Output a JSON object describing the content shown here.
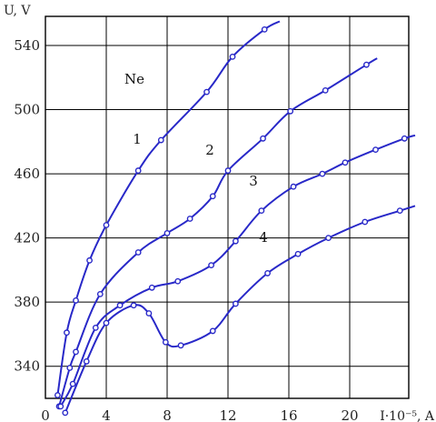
{
  "chart_data": {
    "type": "line",
    "annotation": "Ne",
    "xlabel": "I·10⁻⁵, A",
    "ylabel": "U, V",
    "xlim": [
      0,
      24
    ],
    "ylim": [
      320,
      560
    ],
    "xticks": [
      0,
      4,
      8,
      12,
      16,
      20
    ],
    "yticks": [
      340,
      380,
      420,
      460,
      500,
      540
    ],
    "grid": true,
    "colors": {
      "line": "#2828c8",
      "grid": "#000000",
      "marker_fill": "#ffffff"
    },
    "series": [
      {
        "name": "1",
        "points": [
          [
            0.8,
            322
          ],
          [
            1.4,
            361
          ],
          [
            2.0,
            381
          ],
          [
            2.9,
            406
          ],
          [
            4.0,
            428
          ],
          [
            6.1,
            462
          ],
          [
            7.6,
            481
          ],
          [
            10.6,
            511
          ],
          [
            12.3,
            533
          ],
          [
            14.4,
            550
          ],
          [
            15.4,
            555
          ]
        ]
      },
      {
        "name": "2",
        "points": [
          [
            0.9,
            315
          ],
          [
            1.6,
            339
          ],
          [
            2.0,
            349
          ],
          [
            3.6,
            385
          ],
          [
            6.1,
            411
          ],
          [
            8.0,
            423
          ],
          [
            9.5,
            432
          ],
          [
            11.0,
            446
          ],
          [
            12.0,
            462
          ],
          [
            14.3,
            482
          ],
          [
            16.1,
            499
          ],
          [
            18.4,
            512
          ],
          [
            21.1,
            528
          ],
          [
            21.8,
            532
          ]
        ]
      },
      {
        "name": "3",
        "points": [
          [
            1.0,
            315
          ],
          [
            1.8,
            329
          ],
          [
            3.3,
            364
          ],
          [
            4.9,
            378
          ],
          [
            7.0,
            389
          ],
          [
            8.7,
            393
          ],
          [
            10.9,
            403
          ],
          [
            12.5,
            418
          ],
          [
            14.2,
            437
          ],
          [
            16.3,
            452
          ],
          [
            18.2,
            460
          ],
          [
            19.7,
            467
          ],
          [
            21.7,
            475
          ],
          [
            23.6,
            482
          ],
          [
            24.3,
            484
          ]
        ]
      },
      {
        "name": "4",
        "points": [
          [
            1.3,
            311
          ],
          [
            2.7,
            343
          ],
          [
            4.0,
            367
          ],
          [
            5.8,
            378
          ],
          [
            6.8,
            373
          ],
          [
            7.9,
            355
          ],
          [
            8.9,
            353
          ],
          [
            11.0,
            362
          ],
          [
            12.5,
            379
          ],
          [
            14.6,
            398
          ],
          [
            16.6,
            410
          ],
          [
            18.6,
            420
          ],
          [
            21.0,
            430
          ],
          [
            23.3,
            437
          ],
          [
            24.3,
            440
          ]
        ]
      }
    ]
  }
}
